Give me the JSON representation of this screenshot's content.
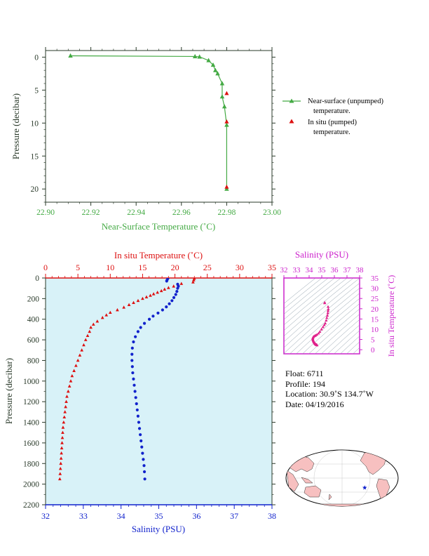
{
  "colors": {
    "green": "#44aa44",
    "red": "#dd1111",
    "blue": "#1122cc",
    "magenta": "#cc22cc",
    "panel_bg": "#d8f2f8",
    "axis_dark": "#2a3a2a"
  },
  "chart_data": [
    {
      "type": "line",
      "xlabel": "Near-Surface Temperature (˚C)",
      "ylabel": "Pressure (decibar)",
      "xlim": [
        22.9,
        23.0
      ],
      "ylim": [
        22,
        -1
      ],
      "x_ticks": [
        "22.90",
        "22.92",
        "22.94",
        "22.96",
        "22.98",
        "23.00"
      ],
      "y_ticks": [
        "0",
        "5",
        "10",
        "15",
        "20"
      ],
      "legend": {
        "placement": "right"
      },
      "series": [
        {
          "name": "Near-surface (unpumped) temperature.",
          "marker": "triangle",
          "points": [
            [
              22.911,
              -0.2
            ],
            [
              22.966,
              -0.1
            ],
            [
              22.968,
              -0.05
            ],
            [
              22.972,
              0.5
            ],
            [
              22.974,
              1.2
            ],
            [
              22.975,
              2.0
            ],
            [
              22.976,
              2.5
            ],
            [
              22.978,
              4.0
            ],
            [
              22.978,
              6.0
            ],
            [
              22.979,
              7.5
            ],
            [
              22.98,
              10.3
            ],
            [
              22.98,
              20.0
            ]
          ]
        },
        {
          "name": "In situ (pumped) temperature.",
          "marker": "triangle",
          "points": [
            [
              22.98,
              5.5
            ],
            [
              22.98,
              9.8
            ],
            [
              22.98,
              19.7
            ]
          ]
        }
      ],
      "legend_lines": {
        "series1": [
          "Near-surface (unpumped)",
          "temperature."
        ],
        "series2": [
          "In situ (pumped)",
          "temperature."
        ]
      }
    },
    {
      "type": "line",
      "title_top": "In situ Temperature (˚C)",
      "xlabel": "Salinity (PSU)",
      "ylabel": "Pressure (decibar)",
      "temp_lim": [
        0,
        35
      ],
      "sal_lim": [
        32,
        38
      ],
      "ylim": [
        2200,
        0
      ],
      "temp_ticks": [
        "0",
        "5",
        "10",
        "15",
        "20",
        "25",
        "30",
        "35"
      ],
      "sal_ticks": [
        "32",
        "33",
        "34",
        "35",
        "36",
        "37",
        "38"
      ],
      "y_ticks": [
        "0",
        "200",
        "400",
        "600",
        "800",
        "1000",
        "1200",
        "1400",
        "1600",
        "1800",
        "2000",
        "2200"
      ],
      "temperature_profile": [
        [
          23.0,
          5
        ],
        [
          22.9,
          20
        ],
        [
          22.8,
          40
        ],
        [
          21.0,
          55
        ],
        [
          20.5,
          65
        ],
        [
          19.8,
          80
        ],
        [
          19.0,
          95
        ],
        [
          18.4,
          110
        ],
        [
          17.9,
          125
        ],
        [
          17.3,
          140
        ],
        [
          16.7,
          155
        ],
        [
          16.2,
          170
        ],
        [
          15.6,
          185
        ],
        [
          15.0,
          200
        ],
        [
          14.3,
          220
        ],
        [
          13.6,
          240
        ],
        [
          12.9,
          260
        ],
        [
          12.1,
          285
        ],
        [
          11.1,
          310
        ],
        [
          10.0,
          335
        ],
        [
          9.4,
          360
        ],
        [
          8.8,
          385
        ],
        [
          8.0,
          420
        ],
        [
          7.4,
          450
        ],
        [
          7.0,
          480
        ],
        [
          6.8,
          520
        ],
        [
          6.5,
          560
        ],
        [
          6.2,
          600
        ],
        [
          5.9,
          650
        ],
        [
          5.6,
          700
        ],
        [
          5.3,
          750
        ],
        [
          5.0,
          800
        ],
        [
          4.7,
          850
        ],
        [
          4.4,
          900
        ],
        [
          4.1,
          950
        ],
        [
          3.9,
          1000
        ],
        [
          3.7,
          1050
        ],
        [
          3.5,
          1100
        ],
        [
          3.3,
          1150
        ],
        [
          3.2,
          1200
        ],
        [
          3.1,
          1250
        ],
        [
          3.0,
          1300
        ],
        [
          2.9,
          1350
        ],
        [
          2.8,
          1400
        ],
        [
          2.7,
          1450
        ],
        [
          2.65,
          1500
        ],
        [
          2.6,
          1550
        ],
        [
          2.55,
          1600
        ],
        [
          2.5,
          1650
        ],
        [
          2.45,
          1700
        ],
        [
          2.4,
          1750
        ],
        [
          2.35,
          1800
        ],
        [
          2.3,
          1850
        ],
        [
          2.25,
          1900
        ],
        [
          2.2,
          1950
        ]
      ],
      "salinity_profile": [
        [
          35.24,
          5
        ],
        [
          35.22,
          20
        ],
        [
          35.21,
          30
        ],
        [
          35.5,
          60
        ],
        [
          35.52,
          80
        ],
        [
          35.5,
          100
        ],
        [
          35.48,
          130
        ],
        [
          35.45,
          160
        ],
        [
          35.4,
          190
        ],
        [
          35.35,
          220
        ],
        [
          35.28,
          250
        ],
        [
          35.2,
          280
        ],
        [
          35.1,
          310
        ],
        [
          34.98,
          340
        ],
        [
          34.85,
          370
        ],
        [
          34.75,
          400
        ],
        [
          34.62,
          440
        ],
        [
          34.52,
          480
        ],
        [
          34.45,
          520
        ],
        [
          34.38,
          570
        ],
        [
          34.33,
          620
        ],
        [
          34.3,
          680
        ],
        [
          34.29,
          740
        ],
        [
          34.29,
          800
        ],
        [
          34.3,
          860
        ],
        [
          34.31,
          920
        ],
        [
          34.33,
          980
        ],
        [
          34.35,
          1040
        ],
        [
          34.37,
          1100
        ],
        [
          34.39,
          1160
        ],
        [
          34.41,
          1220
        ],
        [
          34.43,
          1280
        ],
        [
          34.45,
          1340
        ],
        [
          34.47,
          1400
        ],
        [
          34.49,
          1460
        ],
        [
          34.51,
          1520
        ],
        [
          34.53,
          1580
        ],
        [
          34.55,
          1640
        ],
        [
          34.57,
          1700
        ],
        [
          34.59,
          1760
        ],
        [
          34.61,
          1820
        ],
        [
          34.62,
          1880
        ],
        [
          34.63,
          1950
        ]
      ]
    },
    {
      "type": "scatter",
      "title_top": "Salinity (PSU)",
      "ylabel": "In situ Temperature (˚C)",
      "sal_lim": [
        32,
        38
      ],
      "temp_lim": [
        -2,
        35
      ],
      "sal_ticks": [
        "32",
        "33",
        "34",
        "35",
        "36",
        "37",
        "38"
      ],
      "temp_ticks": [
        "0",
        "5",
        "10",
        "15",
        "20",
        "25",
        "30",
        "35"
      ],
      "ts_points": [
        [
          35.24,
          23.0
        ],
        [
          35.22,
          22.8
        ],
        [
          35.5,
          21.0
        ],
        [
          35.52,
          19.8
        ],
        [
          35.5,
          19.0
        ],
        [
          35.48,
          17.9
        ],
        [
          35.45,
          16.7
        ],
        [
          35.4,
          15.6
        ],
        [
          35.35,
          14.3
        ],
        [
          35.28,
          12.9
        ],
        [
          35.2,
          12.1
        ],
        [
          35.1,
          11.1
        ],
        [
          34.98,
          10.0
        ],
        [
          34.85,
          8.8
        ],
        [
          34.75,
          8.0
        ],
        [
          34.62,
          7.4
        ],
        [
          34.52,
          7.0
        ],
        [
          34.45,
          6.8
        ],
        [
          34.38,
          6.5
        ],
        [
          34.33,
          6.2
        ],
        [
          34.3,
          5.9
        ],
        [
          34.29,
          5.6
        ],
        [
          34.29,
          5.3
        ],
        [
          34.3,
          5.0
        ],
        [
          34.31,
          4.7
        ],
        [
          34.33,
          4.4
        ],
        [
          34.35,
          4.1
        ],
        [
          34.37,
          3.9
        ],
        [
          34.39,
          3.7
        ],
        [
          34.41,
          3.5
        ],
        [
          34.43,
          3.3
        ],
        [
          34.45,
          3.1
        ],
        [
          34.47,
          2.9
        ],
        [
          34.49,
          2.8
        ],
        [
          34.51,
          2.7
        ],
        [
          34.53,
          2.6
        ],
        [
          34.55,
          2.5
        ],
        [
          34.57,
          2.45
        ],
        [
          34.59,
          2.4
        ],
        [
          34.61,
          2.35
        ],
        [
          34.62,
          2.3
        ],
        [
          34.63,
          2.2
        ]
      ]
    }
  ],
  "info": {
    "float": "Float:  6711",
    "profile": "Profile:  194",
    "location": "Location:  30.9˚S  134.7˚W",
    "date": "Date:  04/19/2016"
  },
  "map": {
    "float_lat": -30.9,
    "float_lon": -134.7
  }
}
